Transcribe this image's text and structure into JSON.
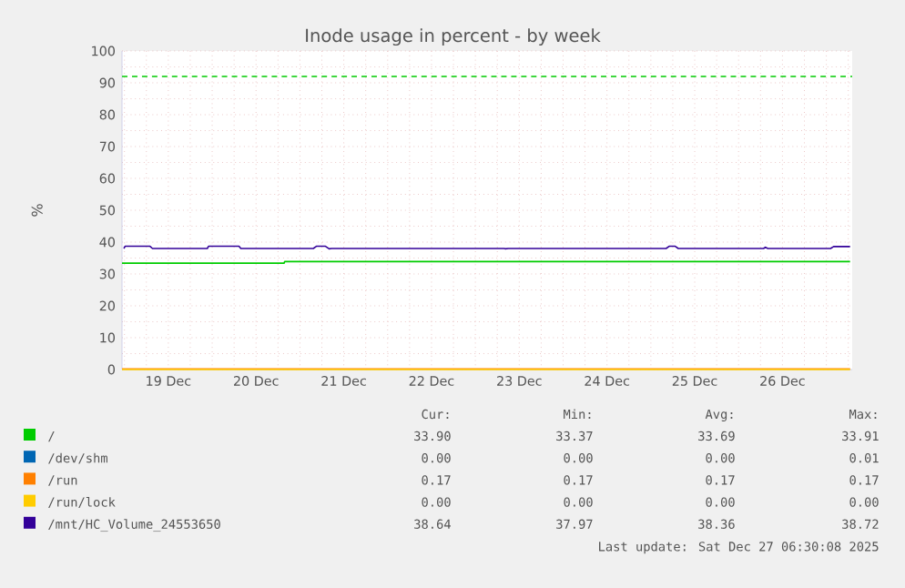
{
  "chart_data": {
    "type": "line",
    "title": "Inode usage in percent - by week",
    "ylabel": "%",
    "xlim": [
      "2025-12-18T23:20",
      "2025-12-27T07:05"
    ],
    "ylim": [
      0,
      100
    ],
    "xticks": [
      {
        "value": "2025-12-19T00:00",
        "label": null
      },
      {
        "value": "2025-12-19T06:00",
        "label": null
      },
      {
        "value": "2025-12-19T12:00",
        "label": "19 Dec"
      },
      {
        "value": "2025-12-19T18:00",
        "label": null
      },
      {
        "value": "2025-12-20T00:00",
        "label": null
      },
      {
        "value": "2025-12-20T06:00",
        "label": null
      },
      {
        "value": "2025-12-20T12:00",
        "label": "20 Dec"
      },
      {
        "value": "2025-12-20T18:00",
        "label": null
      },
      {
        "value": "2025-12-21T00:00",
        "label": null
      },
      {
        "value": "2025-12-21T06:00",
        "label": null
      },
      {
        "value": "2025-12-21T12:00",
        "label": "21 Dec"
      },
      {
        "value": "2025-12-21T18:00",
        "label": null
      },
      {
        "value": "2025-12-22T00:00",
        "label": null
      },
      {
        "value": "2025-12-22T06:00",
        "label": null
      },
      {
        "value": "2025-12-22T12:00",
        "label": "22 Dec"
      },
      {
        "value": "2025-12-22T18:00",
        "label": null
      },
      {
        "value": "2025-12-23T00:00",
        "label": null
      },
      {
        "value": "2025-12-23T06:00",
        "label": null
      },
      {
        "value": "2025-12-23T12:00",
        "label": "23 Dec"
      },
      {
        "value": "2025-12-23T18:00",
        "label": null
      },
      {
        "value": "2025-12-24T00:00",
        "label": null
      },
      {
        "value": "2025-12-24T06:00",
        "label": null
      },
      {
        "value": "2025-12-24T12:00",
        "label": "24 Dec"
      },
      {
        "value": "2025-12-24T18:00",
        "label": null
      },
      {
        "value": "2025-12-25T00:00",
        "label": null
      },
      {
        "value": "2025-12-25T06:00",
        "label": null
      },
      {
        "value": "2025-12-25T12:00",
        "label": "25 Dec"
      },
      {
        "value": "2025-12-25T18:00",
        "label": null
      },
      {
        "value": "2025-12-26T00:00",
        "label": null
      },
      {
        "value": "2025-12-26T06:00",
        "label": null
      },
      {
        "value": "2025-12-26T12:00",
        "label": "26 Dec"
      },
      {
        "value": "2025-12-26T18:00",
        "label": null
      },
      {
        "value": "2025-12-27T00:00",
        "label": null
      },
      {
        "value": "2025-12-27T06:00",
        "label": null
      }
    ],
    "yticks": [
      0,
      {
        "value": 5,
        "label": null
      },
      10,
      {
        "value": 15,
        "label": null
      },
      20,
      {
        "value": 25,
        "label": null
      },
      30,
      {
        "value": 35,
        "label": null
      },
      40,
      {
        "value": 45,
        "label": null
      },
      50,
      {
        "value": 55,
        "label": null
      },
      60,
      {
        "value": 65,
        "label": null
      },
      70,
      {
        "value": 75,
        "label": null
      },
      80,
      {
        "value": 85,
        "label": null
      },
      90,
      {
        "value": 95,
        "label": null
      },
      100
    ],
    "grid": true,
    "legend": "bottom",
    "line_style": "solid",
    "marker": "none",
    "ref_lines": [
      {
        "axis": "y",
        "value": 92,
        "color": "#00cc00",
        "line_style": "dashed"
      }
    ],
    "series": [
      {
        "name": "/",
        "color": "#00cc00",
        "x": [
          "2025-12-18T23:20",
          "2025-12-20T19:40",
          "2025-12-20T19:50",
          "2025-12-27T06:30"
        ],
        "values": [
          33.4,
          33.4,
          33.9,
          33.9
        ]
      },
      {
        "name": "/dev/shm",
        "color": "#0066b3",
        "values": [
          null
        ]
      },
      {
        "name": "/run",
        "color": "#ff8000",
        "x": [
          "2025-12-18T23:20",
          "2025-12-27T06:30"
        ],
        "values": [
          0.2,
          0.2
        ]
      },
      {
        "name": "/run/lock",
        "color": "#ffcc00",
        "x": [
          "2025-12-18T23:20",
          "2025-12-27T06:30"
        ],
        "values": [
          0,
          0
        ]
      },
      {
        "name": "/mnt/HC_Volume_24553650",
        "color": "#330099",
        "x": [
          "2025-12-18T23:50",
          "2025-12-19T00:10",
          "2025-12-19T07:00",
          "2025-12-19T07:40",
          "2025-12-19T22:40",
          "2025-12-19T23:00",
          "2025-12-20T07:20",
          "2025-12-20T07:50",
          "2025-12-21T03:40",
          "2025-12-21T04:30",
          "2025-12-21T07:00",
          "2025-12-21T08:00",
          "2025-12-21T08:40",
          "2025-12-23T07:50",
          "2025-12-23T08:10",
          "2025-12-23T09:00",
          "2025-12-25T04:10",
          "2025-12-25T05:00",
          "2025-12-25T06:40",
          "2025-12-25T07:30",
          "2025-12-26T06:50",
          "2025-12-26T07:20",
          "2025-12-26T08:00",
          "2025-12-27T01:10",
          "2025-12-27T02:00",
          "2025-12-27T06:30"
        ],
        "values": [
          38.0,
          38.7,
          38.7,
          38.0,
          38.0,
          38.7,
          38.7,
          38.0,
          38.0,
          38.7,
          38.7,
          37.9,
          38.0,
          38.0,
          37.9,
          38.0,
          38.0,
          38.7,
          38.7,
          38.0,
          38.0,
          38.4,
          38.0,
          38.0,
          38.6,
          38.6
        ]
      }
    ],
    "annotations": [
      "Cur:",
      "Min:",
      "Avg:",
      "Max:",
      "33.90",
      "33.37",
      "33.69",
      "33.91",
      "0.00",
      "0.00",
      "0.00",
      "0.01",
      "0.17",
      "0.17",
      "0.17",
      "0.17",
      "0.00",
      "0.00",
      "0.00",
      "0.00",
      "38.64",
      "37.97",
      "38.36",
      "38.72",
      "Last update: Sat Dec 27 06:30:08 2025"
    ]
  }
}
